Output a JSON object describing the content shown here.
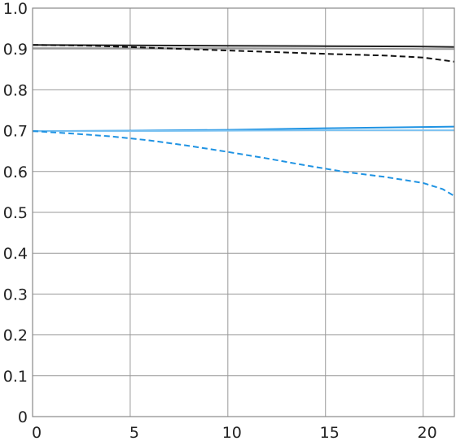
{
  "chart_data": {
    "type": "line",
    "title": "",
    "xlabel": "",
    "ylabel": "",
    "xlim": [
      0,
      21.6
    ],
    "ylim": [
      0,
      1.0
    ],
    "grid": true,
    "x_ticks": [
      0,
      5,
      10,
      15,
      20
    ],
    "y_ticks": [
      0,
      0.1,
      0.2,
      0.3,
      0.4,
      0.5,
      0.6,
      0.7,
      0.8,
      0.9,
      1.0
    ],
    "x_tick_labels": [
      "0",
      "5",
      "10",
      "15",
      "20"
    ],
    "y_tick_labels": [
      "0",
      "0.1",
      "0.2",
      "0.3",
      "0.4",
      "0.5",
      "0.6",
      "0.7",
      "0.8",
      "0.9",
      "1.0"
    ],
    "series": [
      {
        "color": "#222222",
        "style": "solid",
        "x": [
          0,
          5,
          10,
          15,
          20,
          21.6
        ],
        "y": [
          0.91,
          0.909,
          0.908,
          0.907,
          0.906,
          0.905
        ]
      },
      {
        "color": "#999999",
        "style": "solid",
        "x": [
          0,
          5,
          10,
          15,
          20,
          21.6
        ],
        "y": [
          0.902,
          0.902,
          0.902,
          0.901,
          0.9,
          0.9
        ]
      },
      {
        "color": "#111111",
        "style": "dashed",
        "x": [
          0,
          3,
          6,
          9,
          12,
          15,
          18,
          20,
          21.6
        ],
        "y": [
          0.91,
          0.908,
          0.903,
          0.898,
          0.893,
          0.888,
          0.884,
          0.879,
          0.869
        ]
      },
      {
        "color": "#1f93e3",
        "style": "solid",
        "x": [
          0,
          5,
          10,
          15,
          20,
          21.6
        ],
        "y": [
          0.699,
          0.7,
          0.702,
          0.706,
          0.709,
          0.71
        ]
      },
      {
        "color": "#7cc2f1",
        "style": "solid",
        "x": [
          0,
          5,
          10,
          15,
          20,
          21.6
        ],
        "y": [
          0.699,
          0.699,
          0.7,
          0.701,
          0.701,
          0.701
        ]
      },
      {
        "color": "#1f93e3",
        "style": "dashed",
        "x": [
          0,
          2,
          4,
          6,
          8,
          10,
          12,
          14,
          16,
          18,
          20,
          21,
          21.6
        ],
        "y": [
          0.699,
          0.693,
          0.686,
          0.676,
          0.663,
          0.648,
          0.632,
          0.615,
          0.599,
          0.587,
          0.572,
          0.557,
          0.54
        ]
      }
    ]
  }
}
